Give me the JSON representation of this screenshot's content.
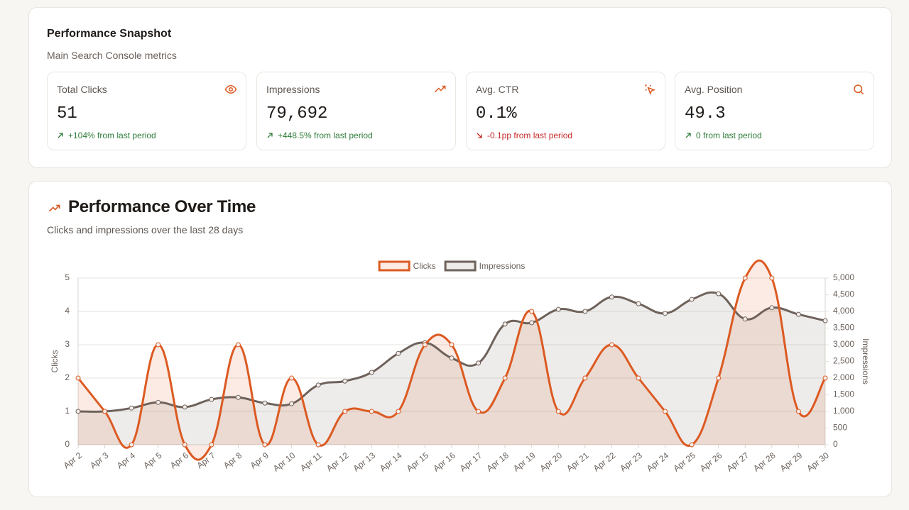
{
  "snapshot": {
    "title": "Performance Snapshot",
    "subtitle": "Main Search Console metrics",
    "metrics": [
      {
        "label": "Total Clicks",
        "value": "51",
        "change": "+104% from last period"
      },
      {
        "label": "Impressions",
        "value": "79,692",
        "change": "+448.5% from last period"
      },
      {
        "label": "Avg. CTR",
        "value": "0.1%",
        "change": "-0.1pp from last period"
      },
      {
        "label": "Avg. Position",
        "value": "49.3",
        "change": "0 from last period"
      }
    ]
  },
  "chart_card": {
    "title": "Performance Over Time",
    "subtitle": "Clicks and impressions over the last 28 days"
  },
  "chart_data": {
    "type": "line",
    "categories": [
      "Apr 2",
      "Apr 3",
      "Apr 4",
      "Apr 5",
      "Apr 6",
      "Apr 7",
      "Apr 8",
      "Apr 9",
      "Apr 10",
      "Apr 11",
      "Apr 12",
      "Apr 13",
      "Apr 14",
      "Apr 15",
      "Apr 16",
      "Apr 17",
      "Apr 18",
      "Apr 19",
      "Apr 20",
      "Apr 21",
      "Apr 22",
      "Apr 23",
      "Apr 24",
      "Apr 25",
      "Apr 26",
      "Apr 27",
      "Apr 28",
      "Apr 29",
      "Apr 30"
    ],
    "series": [
      {
        "name": "Clicks",
        "color": "#dc5a22",
        "values": [
          2,
          1,
          0,
          3,
          0,
          0,
          3,
          0,
          2,
          0,
          1,
          1,
          1,
          3,
          3,
          1,
          2,
          4,
          1,
          2,
          3,
          2,
          1,
          0,
          2,
          5,
          5,
          1,
          2
        ]
      },
      {
        "name": "Impressions",
        "color": "#6e625b",
        "axis": "y2",
        "values": [
          1000,
          1000,
          1100,
          1270,
          1130,
          1360,
          1420,
          1250,
          1230,
          1790,
          1910,
          2170,
          2740,
          3060,
          2600,
          2450,
          3620,
          3660,
          4060,
          4000,
          4430,
          4230,
          3940,
          4360,
          4530,
          3770,
          4110,
          3910,
          3720
        ]
      }
    ],
    "ylabel": "Clicks",
    "y2label": "Impressions",
    "ylim": [
      0,
      5
    ],
    "yticks": [
      0,
      1,
      2,
      3,
      4,
      5
    ],
    "y2lim": [
      0,
      5000
    ],
    "y2ticks": [
      0,
      500,
      {
        "value": 1000,
        "label": "1,000"
      },
      {
        "value": 1500,
        "label": "1,500"
      },
      {
        "value": 2000,
        "label": "2,000"
      },
      {
        "value": 2500,
        "label": "2,500"
      },
      {
        "value": 3000,
        "label": "3,000"
      },
      {
        "value": 3500,
        "label": "3,500"
      },
      {
        "value": 4000,
        "label": "4,000"
      },
      {
        "value": 4500,
        "label": "4,500"
      },
      {
        "value": 5000,
        "label": "5,000"
      }
    ],
    "grid": true,
    "legend": "top"
  }
}
